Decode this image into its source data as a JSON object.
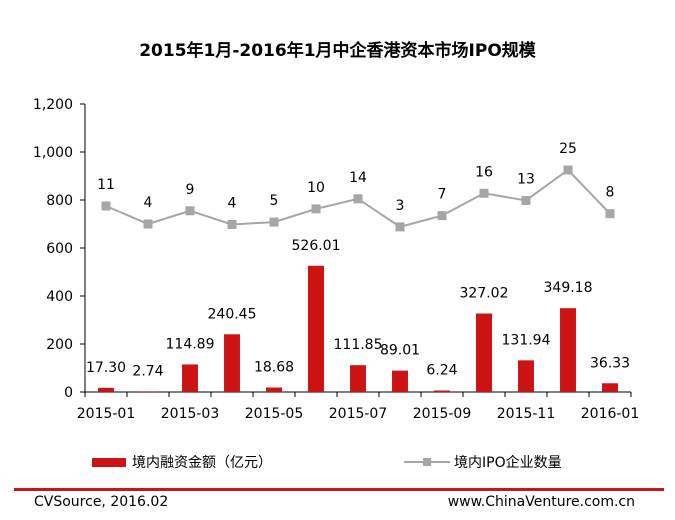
{
  "chart_data": {
    "type": "bar",
    "title": "2015年1月-2016年1月中企香港资本市场IPO规模",
    "categories": [
      "2015-01",
      "2015-02",
      "2015-03",
      "2015-04",
      "2015-05",
      "2015-06",
      "2015-07",
      "2015-08",
      "2015-09",
      "2015-10",
      "2015-11",
      "2015-12",
      "2016-01"
    ],
    "x_tick_labels": [
      "2015-01",
      "2015-03",
      "2015-05",
      "2015-07",
      "2015-09",
      "2015-11",
      "2016-01"
    ],
    "y_ticks": [
      "0",
      "200",
      "400",
      "600",
      "800",
      "1,000",
      "1,200"
    ],
    "ylim": [
      0,
      1200
    ],
    "series": [
      {
        "name": "境内融资金额（亿元）",
        "type": "bar",
        "color": "#cc1414",
        "values": [
          17.3,
          2.74,
          114.89,
          240.45,
          18.68,
          526.01,
          111.85,
          89.01,
          6.24,
          327.02,
          131.94,
          349.18,
          36.33
        ],
        "labels": [
          "17.30",
          "2.74",
          "114.89",
          "240.45",
          "18.68",
          "526.01",
          "111.85",
          "89.01",
          "6.24",
          "327.02",
          "131.94",
          "349.18",
          "36.33"
        ]
      },
      {
        "name": "境内IPO企业数量",
        "type": "line",
        "color": "#a6a6a6",
        "counts": [
          11,
          4,
          9,
          4,
          5,
          10,
          14,
          3,
          7,
          16,
          13,
          25,
          8
        ],
        "plotted_values": [
          775,
          700,
          755,
          698,
          708,
          763,
          805,
          688,
          735,
          828,
          798,
          925,
          743
        ],
        "labels": [
          "11",
          "4",
          "9",
          "4",
          "5",
          "10",
          "14",
          "3",
          "7",
          "16",
          "13",
          "25",
          "8"
        ]
      }
    ],
    "legend": "bottom",
    "grid": false
  },
  "footer": {
    "source": "CVSource, 2016.02",
    "site": "www.ChinaVenture.com.cn"
  }
}
